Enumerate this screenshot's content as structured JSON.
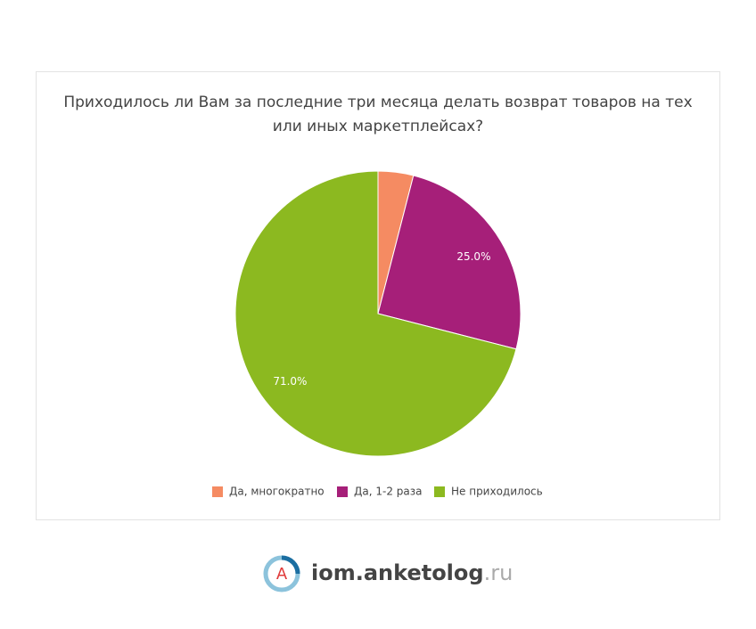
{
  "chart_data": {
    "type": "pie",
    "title": "Приходилось ли Вам за последние три месяца делать возврат товаров на тех или иных маркетплейсах?",
    "categories": [
      "Да, многократно",
      "Да, 1-2 раза",
      "Не приходилось"
    ],
    "values": [
      4,
      25,
      71
    ],
    "value_labels": [
      null,
      "25.0%",
      "71.0%"
    ],
    "colors": [
      "#f58b62",
      "#a61f79",
      "#8cb920"
    ],
    "legend": "bottom"
  },
  "footer": {
    "logo_letter": "A",
    "brand": "iom.anketolog",
    "domain": ".ru"
  }
}
